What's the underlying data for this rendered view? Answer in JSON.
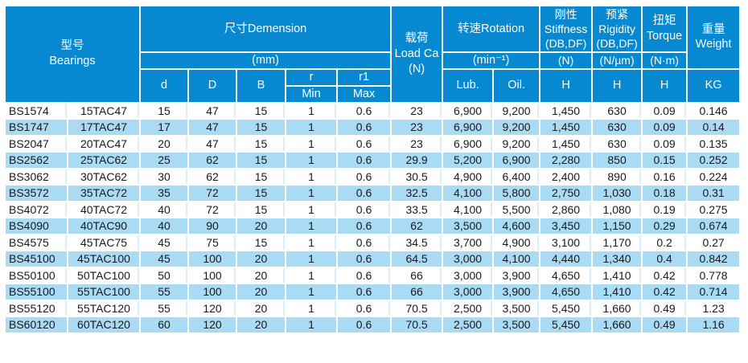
{
  "colors": {
    "header_bg": "#0689d1",
    "row_alt_bg": "#a9dbf4",
    "white_row_divider": "#d9edfa",
    "body_text": "#1a1a1a",
    "header_text": "#ffffff"
  },
  "header": {
    "bearings_zh": "型号",
    "bearings_en": "Bearings",
    "dimension_title": "尺寸Demension",
    "dimension_unit": "(mm)",
    "col_d": "d",
    "col_D": "D",
    "col_B": "B",
    "col_r": "r",
    "col_r_min": "Min",
    "col_r1": "r1",
    "col_r1_max": "Max",
    "load_zh": "载荷",
    "load_en": "Load Ca",
    "load_unit": "(N)",
    "rotation_title": "转速Rotation",
    "rotation_unit": "(min⁻¹)",
    "col_lub": "Lub.",
    "col_oil": "Oil.",
    "stiffness_zh": "刚性",
    "stiffness_en": "Stiffness",
    "stiffness_sub": "(DB,DF)",
    "stiffness_unit": "(N)",
    "stiffness_col": "H",
    "rigidity_zh": "预紧",
    "rigidity_en": "Rigidity",
    "rigidity_sub": "(DB,DF)",
    "rigidity_unit": "(N/µm)",
    "rigidity_col": "H",
    "torque_zh": "扭矩",
    "torque_en": "Torque",
    "torque_unit": "(N·m)",
    "torque_col": "H",
    "weight_zh": "重量",
    "weight_en": "Weight",
    "weight_unit": "KG"
  },
  "rows": [
    [
      "BS1574",
      "15TAC47",
      "15",
      "47",
      "15",
      "1",
      "0.6",
      "23",
      "6,900",
      "9,200",
      "1,450",
      "630",
      "0.09",
      "0.146"
    ],
    [
      "BS1747",
      "17TAC47",
      "17",
      "47",
      "15",
      "1",
      "0.6",
      "23",
      "6,900",
      "9,200",
      "1,450",
      "630",
      "0.09",
      "0.14"
    ],
    [
      "BS2047",
      "20TAC47",
      "20",
      "47",
      "15",
      "1",
      "0.6",
      "23",
      "6,900",
      "9,200",
      "1,450",
      "630",
      "0.09",
      "0.135"
    ],
    [
      "BS2562",
      "25TAC62",
      "25",
      "62",
      "15",
      "1",
      "0.6",
      "29.9",
      "5,200",
      "6,900",
      "2,280",
      "850",
      "0.15",
      "0.252"
    ],
    [
      "BS3062",
      "30TAC62",
      "30",
      "62",
      "15",
      "1",
      "0.6",
      "30.5",
      "4,900",
      "6,400",
      "2,400",
      "890",
      "0.16",
      "0.224"
    ],
    [
      "BS3572",
      "35TAC72",
      "35",
      "72",
      "15",
      "1",
      "0.6",
      "32.5",
      "4,100",
      "5,800",
      "2,750",
      "1,030",
      "0.18",
      "0.31"
    ],
    [
      "BS4072",
      "40TAC72",
      "40",
      "72",
      "15",
      "1",
      "0.6",
      "33.5",
      "4,100",
      "5,500",
      "2,860",
      "1,080",
      "0.19",
      "0.275"
    ],
    [
      "BS4090",
      "40TAC90",
      "40",
      "90",
      "20",
      "1",
      "0.6",
      "62",
      "3,500",
      "4,600",
      "3,450",
      "1,150",
      "0.29",
      "0.674"
    ],
    [
      "BS4575",
      "45TAC75",
      "45",
      "75",
      "15",
      "1",
      "0.6",
      "34.5",
      "3,700",
      "4,900",
      "3,100",
      "1,170",
      "0.2",
      "0.27"
    ],
    [
      "BS45100",
      "45TAC100",
      "45",
      "100",
      "20",
      "1",
      "0.6",
      "64.5",
      "3,000",
      "4,100",
      "4,440",
      "1,340",
      "0.4",
      "0.842"
    ],
    [
      "BS50100",
      "50TAC100",
      "50",
      "100",
      "20",
      "1",
      "0.6",
      "66",
      "3,000",
      "3,900",
      "4,650",
      "1,410",
      "0.42",
      "0.778"
    ],
    [
      "BS55100",
      "55TAC100",
      "55",
      "100",
      "20",
      "1",
      "0.6",
      "66",
      "3,000",
      "3,900",
      "4,650",
      "1,410",
      "0.42",
      "0.714"
    ],
    [
      "BS55120",
      "55TAC120",
      "55",
      "120",
      "20",
      "1",
      "0.6",
      "70.5",
      "2,500",
      "3,500",
      "5,450",
      "1,660",
      "0.49",
      "1.23"
    ],
    [
      "BS60120",
      "60TAC120",
      "60",
      "120",
      "20",
      "1",
      "0.6",
      "70.5",
      "2,500",
      "3,500",
      "5,450",
      "1,660",
      "0.49",
      "1.16"
    ]
  ]
}
